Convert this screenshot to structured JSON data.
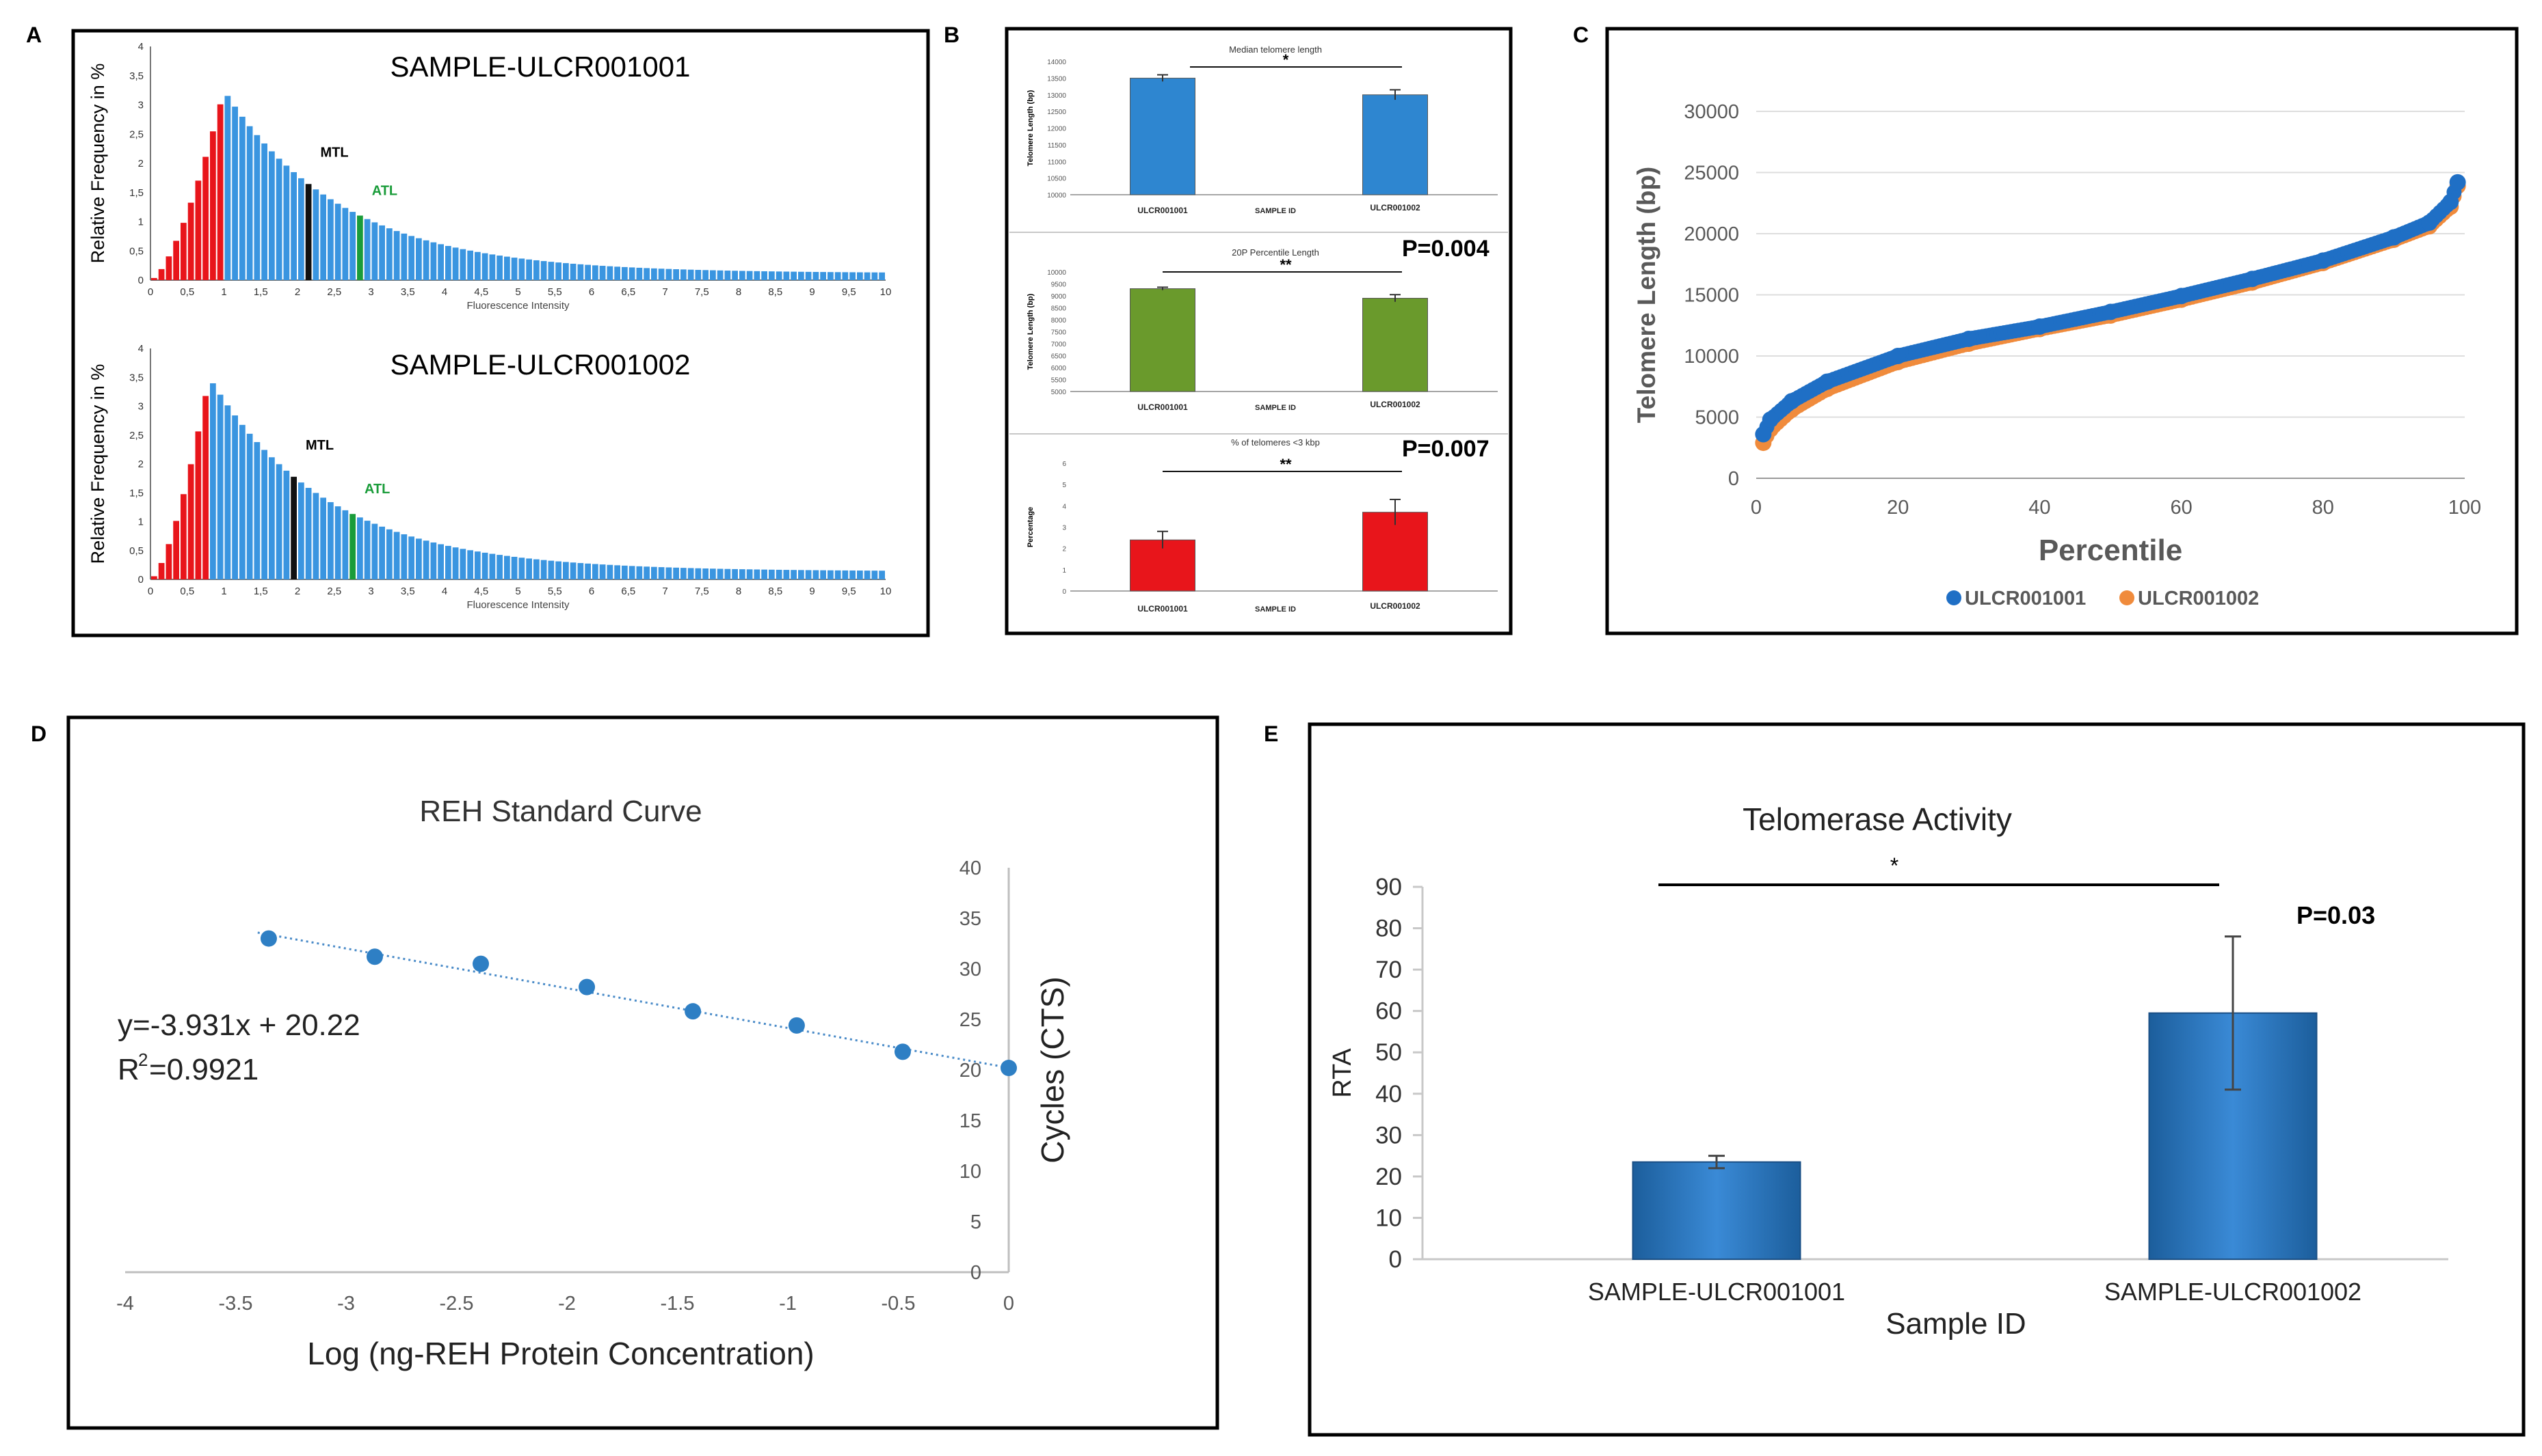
{
  "chart_data": [
    {
      "panel": "A",
      "type": "bar",
      "subplots": [
        {
          "title": "SAMPLE-ULCR001001",
          "xlabel": "Fluorescence Intensity",
          "ylabel": "Relative Frequency in %",
          "xlim": [
            0,
            10
          ],
          "ylim": [
            0,
            4
          ],
          "xticks": [
            "0",
            "0,5",
            "1",
            "1,5",
            "2",
            "2,5",
            "3",
            "3,5",
            "4",
            "4,5",
            "5",
            "5,5",
            "6",
            "6,5",
            "7",
            "7,5",
            "8",
            "8,5",
            "9",
            "9,5",
            "10"
          ],
          "yticks": [
            "0",
            "0,5",
            "1",
            "1,5",
            "2",
            "2,5",
            "3",
            "3,5",
            "4"
          ],
          "bin_width": 0.1,
          "peak_x": 1.0,
          "peak_y": 3.25,
          "red_end_x": 1.0,
          "mtl_x": 2.2,
          "atl_x": 2.9,
          "tail_y": 0.12,
          "annotations": [
            {
              "label": "MTL",
              "color": "#000000",
              "x": 2.2
            },
            {
              "label": "ATL",
              "color": "#1a9c3a",
              "x": 2.9
            }
          ]
        },
        {
          "title": "SAMPLE-ULCR001002",
          "xlabel": "Fluorescence Intensity",
          "ylabel": "Relative Frequency in %",
          "xlim": [
            0,
            10
          ],
          "ylim": [
            0,
            4
          ],
          "xticks": [
            "0",
            "0,5",
            "1",
            "1,5",
            "2",
            "2,5",
            "3",
            "3,5",
            "4",
            "4,5",
            "5",
            "5,5",
            "6",
            "6,5",
            "7",
            "7,5",
            "8",
            "8,5",
            "9",
            "9,5",
            "10"
          ],
          "yticks": [
            "0",
            "0,5",
            "1",
            "1,5",
            "2",
            "2,5",
            "3",
            "3,5",
            "4"
          ],
          "bin_width": 0.1,
          "peak_x": 0.8,
          "peak_y": 3.5,
          "red_end_x": 0.8,
          "mtl_x": 2.0,
          "atl_x": 2.8,
          "tail_y": 0.14,
          "annotations": [
            {
              "label": "MTL",
              "color": "#000000",
              "x": 2.0
            },
            {
              "label": "ATL",
              "color": "#1a9c3a",
              "x": 2.8
            }
          ]
        }
      ]
    },
    {
      "panel": "B",
      "type": "bar",
      "subplots": [
        {
          "title": "Median telomere length",
          "ylabel": "Telomere Length (bp)",
          "xlabel": "SAMPLE ID",
          "categories": [
            "ULCR001001",
            "ULCR001002"
          ],
          "values": [
            13500,
            13000
          ],
          "errors": [
            100,
            150
          ],
          "color": "#2e86d0",
          "ylim": [
            10000,
            14000
          ],
          "yticks": [
            "10000",
            "10500",
            "11000",
            "11500",
            "12000",
            "12500",
            "13000",
            "13500",
            "14000"
          ],
          "significance": "*",
          "pvalue": ""
        },
        {
          "title": "20P Percentile Length",
          "ylabel": "Telomere Length (bp)",
          "xlabel": "SAMPLE ID",
          "categories": [
            "ULCR001001",
            "ULCR001002"
          ],
          "values": [
            9300,
            8900
          ],
          "errors": [
            60,
            150
          ],
          "color": "#6a9a2c",
          "ylim": [
            5000,
            10000
          ],
          "yticks": [
            "5000",
            "5500",
            "6000",
            "6500",
            "7000",
            "7500",
            "8000",
            "8500",
            "9000",
            "9500",
            "10000"
          ],
          "significance": "**",
          "pvalue": "P=0.004"
        },
        {
          "title": "% of telomeres <3 kbp",
          "ylabel": "Percentage",
          "xlabel": "SAMPLE ID",
          "categories": [
            "ULCR001001",
            "ULCR001002"
          ],
          "values": [
            2.4,
            3.7
          ],
          "errors": [
            0.4,
            0.6
          ],
          "color": "#e8151b",
          "ylim": [
            0,
            6
          ],
          "yticks": [
            "0",
            "1",
            "2",
            "3",
            "4",
            "5",
            "6"
          ],
          "significance": "**",
          "pvalue": "P=0.007"
        }
      ]
    },
    {
      "panel": "C",
      "type": "scatter",
      "xlabel": "Percentile",
      "ylabel": "Telomere Length (bp)",
      "xlim": [
        0,
        100
      ],
      "ylim": [
        0,
        30000
      ],
      "xticks": [
        "0",
        "20",
        "40",
        "60",
        "80",
        "100"
      ],
      "yticks": [
        "0",
        "5000",
        "10000",
        "15000",
        "20000",
        "25000",
        "30000"
      ],
      "legend_position": "bottom",
      "series": [
        {
          "name": "ULCR001001",
          "color": "#1f6fc5",
          "x": [
            1,
            2,
            5,
            10,
            20,
            30,
            40,
            50,
            60,
            70,
            80,
            90,
            95,
            98,
            99
          ],
          "y": [
            3600,
            4800,
            6300,
            7900,
            10000,
            11400,
            12400,
            13600,
            14900,
            16300,
            17800,
            19700,
            20900,
            22600,
            24200
          ]
        },
        {
          "name": "ULCR001002",
          "color": "#f08b3c",
          "x": [
            1,
            2,
            5,
            10,
            20,
            30,
            40,
            50,
            60,
            70,
            80,
            90,
            95,
            98,
            99
          ],
          "y": [
            2900,
            4000,
            5600,
            7300,
            9500,
            11000,
            12200,
            13300,
            14600,
            16000,
            17600,
            19500,
            20600,
            22200,
            23900
          ]
        }
      ]
    },
    {
      "panel": "D",
      "type": "scatter",
      "title": "REH Standard Curve",
      "xlabel": "Log (ng-REH Protein Concentration)",
      "ylabel": "Cycles (CTS)",
      "xlim": [
        -4,
        0
      ],
      "ylim": [
        0,
        40
      ],
      "xticks": [
        "-4",
        "-3.5",
        "-3",
        "-2.5",
        "-2",
        "-1.5",
        "-1",
        "-0.5",
        "0"
      ],
      "yticks": [
        "0",
        "5",
        "10",
        "15",
        "20",
        "25",
        "30",
        "35",
        "40"
      ],
      "x": [
        -3.35,
        -2.87,
        -2.39,
        -1.91,
        -1.43,
        -0.96,
        -0.48,
        0
      ],
      "y": [
        33.0,
        31.2,
        30.5,
        28.2,
        25.8,
        24.4,
        21.8,
        20.2
      ],
      "trendline": {
        "slope": -3.931,
        "intercept": 20.22,
        "style": "dotted"
      },
      "equation": "y=-3.931x + 20.22",
      "r2_prefix": "R",
      "r2_sup": "2",
      "r2_value": "=0.9921",
      "color": "#2e7fc4"
    },
    {
      "panel": "E",
      "type": "bar",
      "title": "Telomerase Activity",
      "xlabel": "Sample ID",
      "ylabel": "RTA",
      "categories": [
        "SAMPLE-ULCR001001",
        "SAMPLE-ULCR001002"
      ],
      "values": [
        23.5,
        59.5
      ],
      "errors": [
        1.5,
        18.5
      ],
      "ylim": [
        0,
        90
      ],
      "yticks": [
        "0",
        "10",
        "20",
        "30",
        "40",
        "50",
        "60",
        "70",
        "80",
        "90"
      ],
      "color": "#2f7cc2",
      "significance": "*",
      "pvalue": "P=0.03"
    }
  ],
  "panel_labels": [
    "A",
    "B",
    "C",
    "D",
    "E"
  ]
}
